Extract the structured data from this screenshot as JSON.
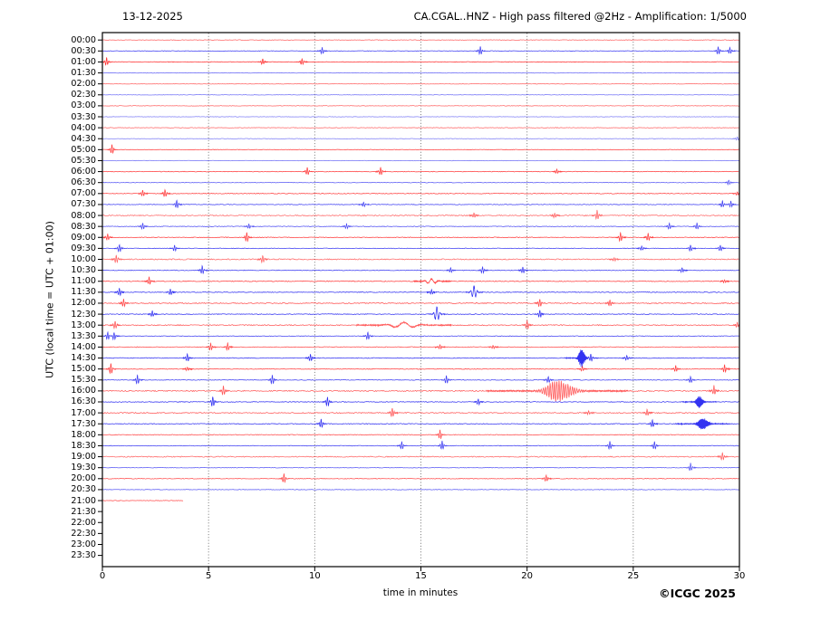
{
  "header": {
    "date_title": "13-12-2025",
    "main_title": "CA.CGAL..HNZ - High pass filtered @2Hz - Amplification: 1/5000"
  },
  "footer": {
    "copyright": "©ICGC 2025"
  },
  "chart_data": {
    "type": "line",
    "variant": "helicorder-seismogram",
    "date": "13-12-2025",
    "title": "CA.CGAL..HNZ - High pass filtered @2Hz - Amplification: 1/5000",
    "xlabel": "time in minutes",
    "ylabel": "UTC (local time = UTC + 01:00)",
    "xlim": [
      0,
      30
    ],
    "x_ticks": [
      0,
      5,
      10,
      15,
      20,
      25,
      30
    ],
    "grid": "vertical dotted lines every 5 minutes",
    "minutes_per_row": 30,
    "colors": {
      "red_trace": "#ff0000",
      "blue_trace": "#0000ee",
      "grid": "#666666",
      "axis": "#000000",
      "background": "#ffffff"
    },
    "rows": [
      {
        "time": "00:00",
        "color": "red",
        "has_trace": true,
        "noise": 0.3,
        "opacity": 0.6,
        "events": []
      },
      {
        "time": "00:30",
        "color": "blue",
        "has_trace": true,
        "noise": 0.3,
        "opacity": 0.75,
        "events": [
          {
            "m": 10.35,
            "a": 4
          },
          {
            "m": 17.8,
            "a": 5
          },
          {
            "m": 29.0,
            "a": 5
          },
          {
            "m": 29.55,
            "a": 4
          }
        ]
      },
      {
        "time": "01:00",
        "color": "red",
        "has_trace": true,
        "noise": 0.35,
        "opacity": 0.8,
        "events": [
          {
            "m": 0.2,
            "a": 5
          },
          {
            "m": 7.55,
            "a": 4
          },
          {
            "m": 9.4,
            "a": 4
          }
        ]
      },
      {
        "time": "01:30",
        "color": "blue",
        "has_trace": true,
        "noise": 0.3,
        "opacity": 0.6,
        "events": []
      },
      {
        "time": "02:00",
        "color": "red",
        "has_trace": true,
        "noise": 0.3,
        "opacity": 0.6,
        "events": []
      },
      {
        "time": "02:30",
        "color": "blue",
        "has_trace": true,
        "noise": 0.25,
        "opacity": 0.55,
        "events": []
      },
      {
        "time": "03:00",
        "color": "red",
        "has_trace": true,
        "noise": 0.3,
        "opacity": 0.6,
        "events": []
      },
      {
        "time": "03:30",
        "color": "blue",
        "has_trace": true,
        "noise": 0.25,
        "opacity": 0.5,
        "events": []
      },
      {
        "time": "04:00",
        "color": "red",
        "has_trace": true,
        "noise": 0.3,
        "opacity": 0.6,
        "events": []
      },
      {
        "time": "04:30",
        "color": "blue",
        "has_trace": true,
        "noise": 0.25,
        "opacity": 0.5,
        "events": [
          {
            "m": 29.9,
            "a": 2
          }
        ]
      },
      {
        "time": "05:00",
        "color": "red",
        "has_trace": true,
        "noise": 0.3,
        "opacity": 0.75,
        "events": [
          {
            "m": 0.45,
            "a": 6
          }
        ]
      },
      {
        "time": "05:30",
        "color": "blue",
        "has_trace": true,
        "noise": 0.25,
        "opacity": 0.55,
        "events": []
      },
      {
        "time": "06:00",
        "color": "red",
        "has_trace": true,
        "noise": 0.35,
        "opacity": 0.75,
        "events": [
          {
            "m": 9.65,
            "a": 5
          },
          {
            "m": 13.1,
            "a": 5
          },
          {
            "m": 21.4,
            "a": 3
          }
        ]
      },
      {
        "time": "06:30",
        "color": "blue",
        "has_trace": true,
        "noise": 0.3,
        "opacity": 0.65,
        "events": [
          {
            "m": 29.5,
            "a": 3
          }
        ]
      },
      {
        "time": "07:00",
        "color": "red",
        "has_trace": true,
        "noise": 0.4,
        "opacity": 0.75,
        "events": [
          {
            "m": 1.9,
            "a": 4
          },
          {
            "m": 2.95,
            "a": 5
          },
          {
            "m": 29.9,
            "a": 2
          }
        ]
      },
      {
        "time": "07:30",
        "color": "blue",
        "has_trace": true,
        "noise": 0.35,
        "opacity": 0.75,
        "events": [
          {
            "m": 3.5,
            "a": 5
          },
          {
            "m": 12.3,
            "a": 3
          },
          {
            "m": 29.2,
            "a": 4
          },
          {
            "m": 29.6,
            "a": 4
          }
        ]
      },
      {
        "time": "08:00",
        "color": "red",
        "has_trace": true,
        "noise": 0.55,
        "opacity": 0.6,
        "events": [
          {
            "m": 17.5,
            "a": 3
          },
          {
            "m": 21.3,
            "a": 3
          },
          {
            "m": 23.3,
            "a": 6
          }
        ]
      },
      {
        "time": "08:30",
        "color": "blue",
        "has_trace": true,
        "noise": 0.35,
        "opacity": 0.7,
        "events": [
          {
            "m": 1.9,
            "a": 4
          },
          {
            "m": 6.9,
            "a": 3
          },
          {
            "m": 11.5,
            "a": 3
          },
          {
            "m": 26.7,
            "a": 4
          },
          {
            "m": 28.0,
            "a": 4
          }
        ]
      },
      {
        "time": "09:00",
        "color": "red",
        "has_trace": true,
        "noise": 0.4,
        "opacity": 0.75,
        "events": [
          {
            "m": 0.25,
            "a": 4
          },
          {
            "m": 6.8,
            "a": 6
          },
          {
            "m": 24.4,
            "a": 6
          },
          {
            "m": 25.7,
            "a": 5
          }
        ]
      },
      {
        "time": "09:30",
        "color": "blue",
        "has_trace": true,
        "noise": 0.35,
        "opacity": 0.75,
        "events": [
          {
            "m": 0.8,
            "a": 5
          },
          {
            "m": 3.4,
            "a": 4
          },
          {
            "m": 25.4,
            "a": 3
          },
          {
            "m": 27.7,
            "a": 4
          },
          {
            "m": 29.1,
            "a": 4
          }
        ]
      },
      {
        "time": "10:00",
        "color": "red",
        "has_trace": true,
        "noise": 0.6,
        "opacity": 0.6,
        "events": [
          {
            "m": 0.65,
            "a": 5
          },
          {
            "m": 7.55,
            "a": 5
          },
          {
            "m": 24.1,
            "a": 2
          }
        ]
      },
      {
        "time": "10:30",
        "color": "blue",
        "has_trace": true,
        "noise": 0.4,
        "opacity": 0.75,
        "events": [
          {
            "m": 4.7,
            "a": 5
          },
          {
            "m": 16.4,
            "a": 3
          },
          {
            "m": 17.9,
            "a": 4
          },
          {
            "m": 19.8,
            "a": 4
          },
          {
            "m": 27.3,
            "a": 3
          }
        ]
      },
      {
        "time": "11:00",
        "color": "red",
        "has_trace": true,
        "noise": 0.45,
        "opacity": 0.75,
        "events": [
          {
            "m": 2.2,
            "a": 5
          },
          {
            "m": 15.5,
            "a": 3,
            "w": 0.2
          },
          {
            "m": 29.3,
            "a": 2
          }
        ]
      },
      {
        "time": "11:30",
        "color": "blue",
        "has_trace": true,
        "noise": 0.4,
        "opacity": 0.8,
        "events": [
          {
            "m": 0.8,
            "a": 5
          },
          {
            "m": 3.2,
            "a": 4
          },
          {
            "m": 15.5,
            "a": 3
          },
          {
            "m": 17.5,
            "a": 8,
            "w": 0.09
          }
        ]
      },
      {
        "time": "12:00",
        "color": "red",
        "has_trace": true,
        "noise": 0.5,
        "opacity": 0.7,
        "events": [
          {
            "m": 1.0,
            "a": 5
          },
          {
            "m": 20.6,
            "a": 5
          },
          {
            "m": 23.9,
            "a": 4
          }
        ]
      },
      {
        "time": "12:30",
        "color": "blue",
        "has_trace": true,
        "noise": 0.4,
        "opacity": 0.8,
        "events": [
          {
            "m": 2.35,
            "a": 4
          },
          {
            "m": 15.75,
            "a": 9,
            "w": 0.09
          },
          {
            "m": 20.6,
            "a": 5
          }
        ]
      },
      {
        "time": "13:00",
        "color": "red",
        "has_trace": true,
        "noise": 0.55,
        "opacity": 0.65,
        "events": [
          {
            "m": 0.6,
            "a": 5
          },
          {
            "m": 14.2,
            "a": 3.5,
            "w": 0.5
          },
          {
            "m": 20.0,
            "a": 6
          },
          {
            "m": 29.9,
            "a": 3
          }
        ]
      },
      {
        "time": "13:30",
        "color": "blue",
        "has_trace": true,
        "noise": 0.35,
        "opacity": 0.75,
        "events": [
          {
            "m": 0.25,
            "a": 5
          },
          {
            "m": 0.55,
            "a": 5
          },
          {
            "m": 12.5,
            "a": 5
          }
        ]
      },
      {
        "time": "14:00",
        "color": "red",
        "has_trace": true,
        "noise": 0.4,
        "opacity": 0.7,
        "events": [
          {
            "m": 5.1,
            "a": 5
          },
          {
            "m": 5.9,
            "a": 5
          },
          {
            "m": 15.9,
            "a": 3
          },
          {
            "m": 18.4,
            "a": 2
          }
        ]
      },
      {
        "time": "14:30",
        "color": "blue",
        "has_trace": true,
        "noise": 0.4,
        "opacity": 0.8,
        "events": [
          {
            "m": 4.0,
            "a": 5
          },
          {
            "m": 9.8,
            "a": 5
          },
          {
            "m": 22.55,
            "a": 11,
            "w": 0.1,
            "quake": true
          },
          {
            "m": 23.0,
            "a": 5
          },
          {
            "m": 24.7,
            "a": 3
          }
        ]
      },
      {
        "time": "15:00",
        "color": "red",
        "has_trace": true,
        "noise": 0.4,
        "opacity": 0.75,
        "events": [
          {
            "m": 0.4,
            "a": 7
          },
          {
            "m": 4.0,
            "a": 2
          },
          {
            "m": 22.6,
            "a": 3
          },
          {
            "m": 27.0,
            "a": 4
          },
          {
            "m": 29.3,
            "a": 5
          }
        ]
      },
      {
        "time": "15:30",
        "color": "blue",
        "has_trace": true,
        "noise": 0.35,
        "opacity": 0.75,
        "events": [
          {
            "m": 1.65,
            "a": 6
          },
          {
            "m": 8.0,
            "a": 6
          },
          {
            "m": 16.2,
            "a": 5
          },
          {
            "m": 21.0,
            "a": 4
          },
          {
            "m": 27.7,
            "a": 4
          }
        ]
      },
      {
        "time": "16:00",
        "color": "red",
        "has_trace": true,
        "noise": 0.65,
        "opacity": 0.65,
        "events": [
          {
            "m": 5.7,
            "a": 6
          },
          {
            "m": 21.4,
            "a": 12,
            "w": 0.42,
            "quake": true
          },
          {
            "m": 28.8,
            "a": 6
          }
        ]
      },
      {
        "time": "16:30",
        "color": "blue",
        "has_trace": true,
        "noise": 0.4,
        "opacity": 0.8,
        "events": [
          {
            "m": 5.2,
            "a": 7
          },
          {
            "m": 10.6,
            "a": 6
          },
          {
            "m": 17.7,
            "a": 4
          },
          {
            "m": 28.1,
            "a": 8,
            "w": 0.1,
            "quake": true
          }
        ]
      },
      {
        "time": "17:00",
        "color": "red",
        "has_trace": true,
        "noise": 0.55,
        "opacity": 0.65,
        "events": [
          {
            "m": 13.65,
            "a": 6
          },
          {
            "m": 22.9,
            "a": 2
          },
          {
            "m": 25.65,
            "a": 4
          }
        ]
      },
      {
        "time": "17:30",
        "color": "blue",
        "has_trace": true,
        "noise": 0.4,
        "opacity": 0.8,
        "events": [
          {
            "m": 10.3,
            "a": 6
          },
          {
            "m": 25.9,
            "a": 5
          },
          {
            "m": 28.25,
            "a": 7,
            "w": 0.16,
            "quake": true
          }
        ]
      },
      {
        "time": "18:00",
        "color": "red",
        "has_trace": true,
        "noise": 0.4,
        "opacity": 0.7,
        "events": [
          {
            "m": 15.9,
            "a": 6
          }
        ]
      },
      {
        "time": "18:30",
        "color": "blue",
        "has_trace": true,
        "noise": 0.35,
        "opacity": 0.75,
        "events": [
          {
            "m": 14.1,
            "a": 5
          },
          {
            "m": 16.0,
            "a": 6
          },
          {
            "m": 23.9,
            "a": 5
          },
          {
            "m": 26.0,
            "a": 5
          }
        ]
      },
      {
        "time": "19:00",
        "color": "red",
        "has_trace": true,
        "noise": 0.55,
        "opacity": 0.6,
        "events": [
          {
            "m": 29.2,
            "a": 5
          }
        ]
      },
      {
        "time": "19:30",
        "color": "blue",
        "has_trace": true,
        "noise": 0.3,
        "opacity": 0.65,
        "events": [
          {
            "m": 27.7,
            "a": 5
          }
        ]
      },
      {
        "time": "20:00",
        "color": "red",
        "has_trace": true,
        "noise": 0.35,
        "opacity": 0.7,
        "events": [
          {
            "m": 8.55,
            "a": 6
          },
          {
            "m": 20.9,
            "a": 4
          }
        ]
      },
      {
        "time": "20:30",
        "color": "blue",
        "has_trace": true,
        "noise": 0.3,
        "opacity": 0.65,
        "events": []
      },
      {
        "time": "21:00",
        "color": "red",
        "has_trace": true,
        "end_minute": 3.8,
        "noise": 0.3,
        "opacity": 0.7,
        "events": []
      },
      {
        "time": "21:30",
        "color": "blue",
        "has_trace": false,
        "events": []
      },
      {
        "time": "22:00",
        "color": "red",
        "has_trace": false,
        "events": []
      },
      {
        "time": "22:30",
        "color": "blue",
        "has_trace": false,
        "events": []
      },
      {
        "time": "23:00",
        "color": "red",
        "has_trace": false,
        "events": []
      },
      {
        "time": "23:30",
        "color": "blue",
        "has_trace": false,
        "events": []
      }
    ]
  }
}
